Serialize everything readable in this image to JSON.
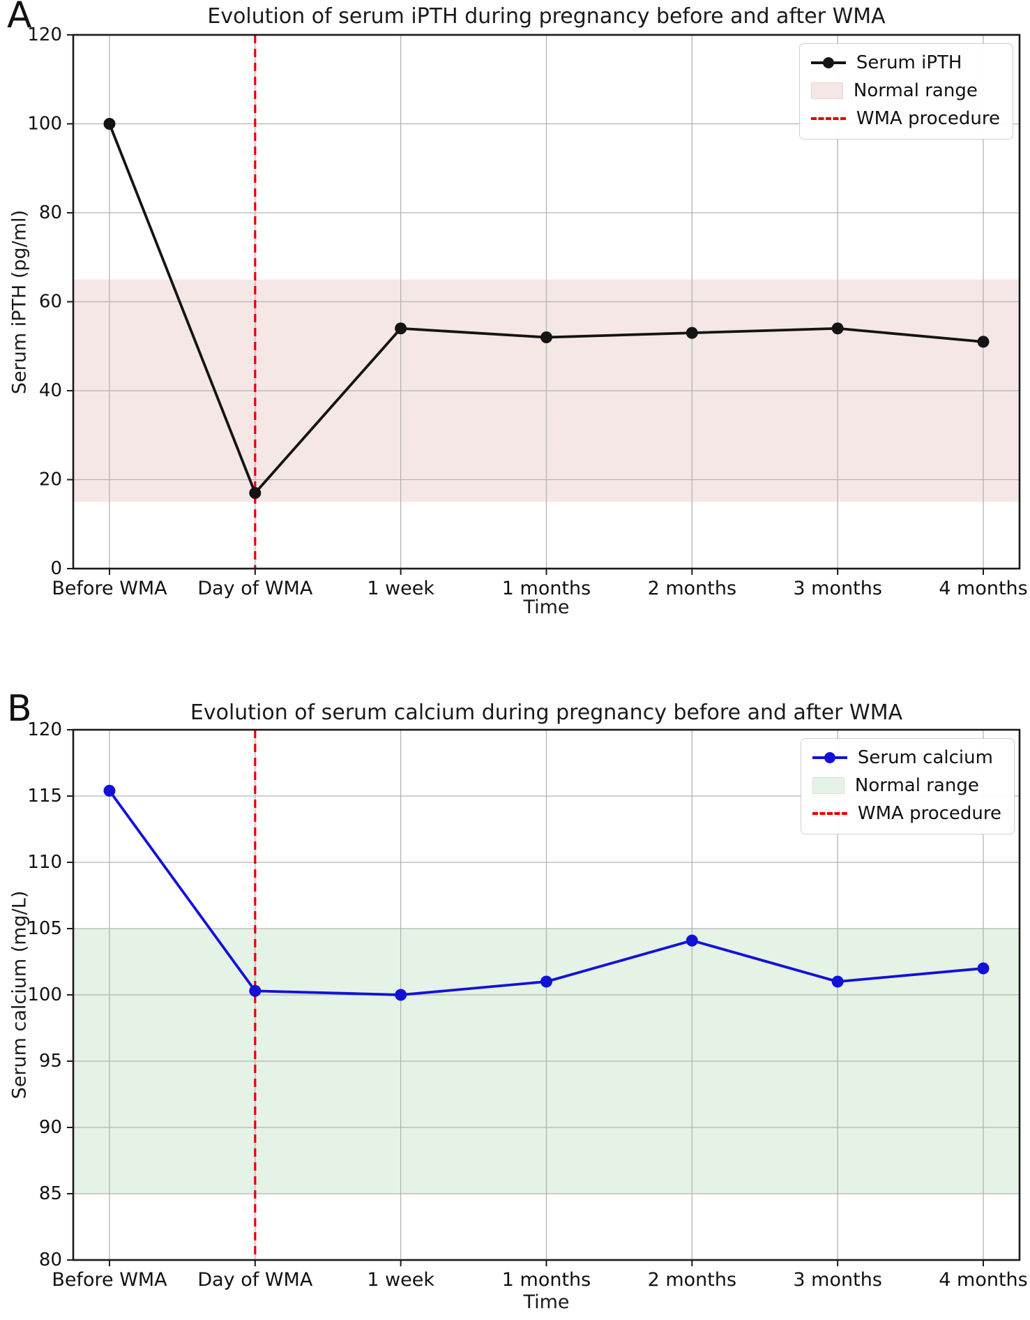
{
  "figure": {
    "background": "#ffffff",
    "panels": [
      {
        "letter": "A"
      },
      {
        "letter": "B"
      }
    ]
  },
  "chart_data": [
    {
      "type": "line",
      "panel_label": "A",
      "title": "Evolution of serum iPTH during pregnancy before and after WMA",
      "xlabel": "Time",
      "ylabel": "Serum iPTH (pg/ml)",
      "categories": [
        "Before WMA",
        "Day of WMA",
        "1 week",
        "1 months",
        "2 months",
        "3 months",
        "4 months"
      ],
      "series": [
        {
          "name": "Serum iPTH",
          "color": "#141414",
          "marker": "circle",
          "values": [
            100,
            17,
            54,
            52,
            53,
            54,
            51
          ]
        }
      ],
      "normal_range": {
        "label": "Normal range",
        "low": 15,
        "high": 65,
        "color": "#f6e7e7",
        "border": "#e7d4d4"
      },
      "event_line": {
        "label": "WMA procedure",
        "category": "Day of WMA",
        "category_index": 1,
        "color": "#e60000",
        "style": "dashed"
      },
      "ylim": [
        0,
        120
      ],
      "yticks": [
        0,
        20,
        40,
        60,
        80,
        100,
        120
      ],
      "grid": true,
      "legend_position": "upper right"
    },
    {
      "type": "line",
      "panel_label": "B",
      "title": "Evolution of serum calcium during pregnancy before and after WMA",
      "xlabel": "Time",
      "ylabel": "Serum calcium (mg/L)",
      "categories": [
        "Before WMA",
        "Day of WMA",
        "1 week",
        "1 months",
        "2 months",
        "3 months",
        "4 months"
      ],
      "series": [
        {
          "name": "Serum calcium",
          "color": "#1212d6",
          "marker": "circle",
          "values": [
            115.4,
            100.3,
            100,
            101,
            104.1,
            101,
            102
          ]
        }
      ],
      "normal_range": {
        "label": "Normal range",
        "low": 85,
        "high": 105,
        "color": "#e5f2e6",
        "border": "#d3e6d4"
      },
      "event_line": {
        "label": "WMA procedure",
        "category": "Day of WMA",
        "category_index": 1,
        "color": "#e60000",
        "style": "dashed"
      },
      "ylim": [
        80,
        120
      ],
      "yticks": [
        80,
        85,
        90,
        95,
        100,
        105,
        110,
        115,
        120
      ],
      "grid": true,
      "legend_position": "upper right"
    }
  ]
}
